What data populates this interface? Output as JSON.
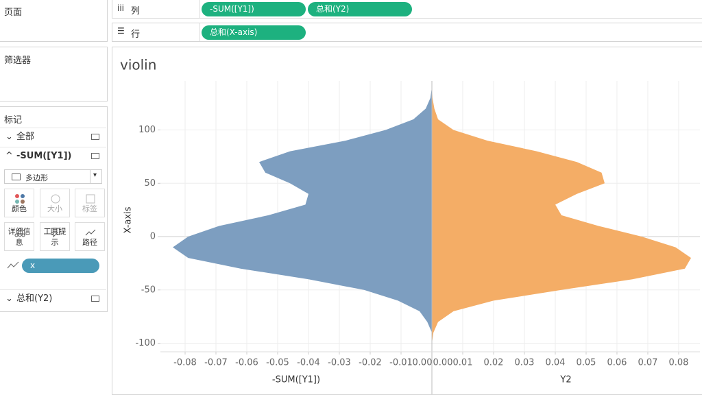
{
  "sidebar": {
    "pages": "页面",
    "filters": "筛选器",
    "marks": {
      "title": "标记",
      "all": "全部",
      "card": "-SUM([Y1])",
      "mark_type": "多边形",
      "buttons": [
        "颜色",
        "大小",
        "标签",
        "详细信息",
        "工具提示",
        "路径"
      ],
      "path_pill": "x",
      "other": "总和(Y2)"
    }
  },
  "shelves": {
    "columns": {
      "label": "列",
      "pills": [
        "-SUM([Y1])",
        "总和(Y2)"
      ]
    },
    "rows": {
      "label": "行",
      "pills": [
        "总和(X-axis)"
      ]
    }
  },
  "chart_data": {
    "type": "violin",
    "title": "violin",
    "y_label": "X-axis",
    "y": [
      140,
      130,
      120,
      110,
      100,
      90,
      80,
      70,
      60,
      50,
      40,
      30,
      20,
      10,
      0,
      -10,
      -20,
      -30,
      -40,
      -50,
      -60,
      -70,
      -80,
      -90,
      -100
    ],
    "ylim": [
      -108,
      146
    ],
    "yticks": [
      -100,
      -50,
      0,
      50,
      100
    ],
    "grid": true,
    "series": [
      {
        "x_label": "-SUM([Y1])",
        "color": "#7d9ec0",
        "xlim": [
          -0.088,
          0
        ],
        "xticks": [
          -0.08,
          -0.07,
          -0.06,
          -0.05,
          -0.04,
          -0.03,
          -0.02,
          -0.01,
          {
            "value": 0,
            "label": "0.00"
          }
        ],
        "values": [
          0,
          -0.0005,
          -0.002,
          -0.006,
          -0.015,
          -0.028,
          -0.046,
          -0.056,
          -0.054,
          -0.046,
          -0.04,
          -0.041,
          -0.053,
          -0.069,
          -0.079,
          -0.084,
          -0.079,
          -0.062,
          -0.04,
          -0.022,
          -0.011,
          -0.004,
          -0.0015,
          0,
          0
        ]
      },
      {
        "x_label": "Y2",
        "color": "#f4ad66",
        "xlim": [
          0,
          0.0869
        ],
        "xticks": [
          {
            "value": 0,
            "label": "0.00"
          },
          0.01,
          0.02,
          0.03,
          0.04,
          0.05,
          0.06,
          0.07,
          0.08
        ],
        "values": [
          0,
          0.0002,
          0.0008,
          0.002,
          0.007,
          0.018,
          0.034,
          0.047,
          0.055,
          0.056,
          0.047,
          0.04,
          0.042,
          0.054,
          0.068,
          0.079,
          0.084,
          0.082,
          0.065,
          0.042,
          0.02,
          0.007,
          0.002,
          0.0005,
          0
        ]
      }
    ]
  }
}
